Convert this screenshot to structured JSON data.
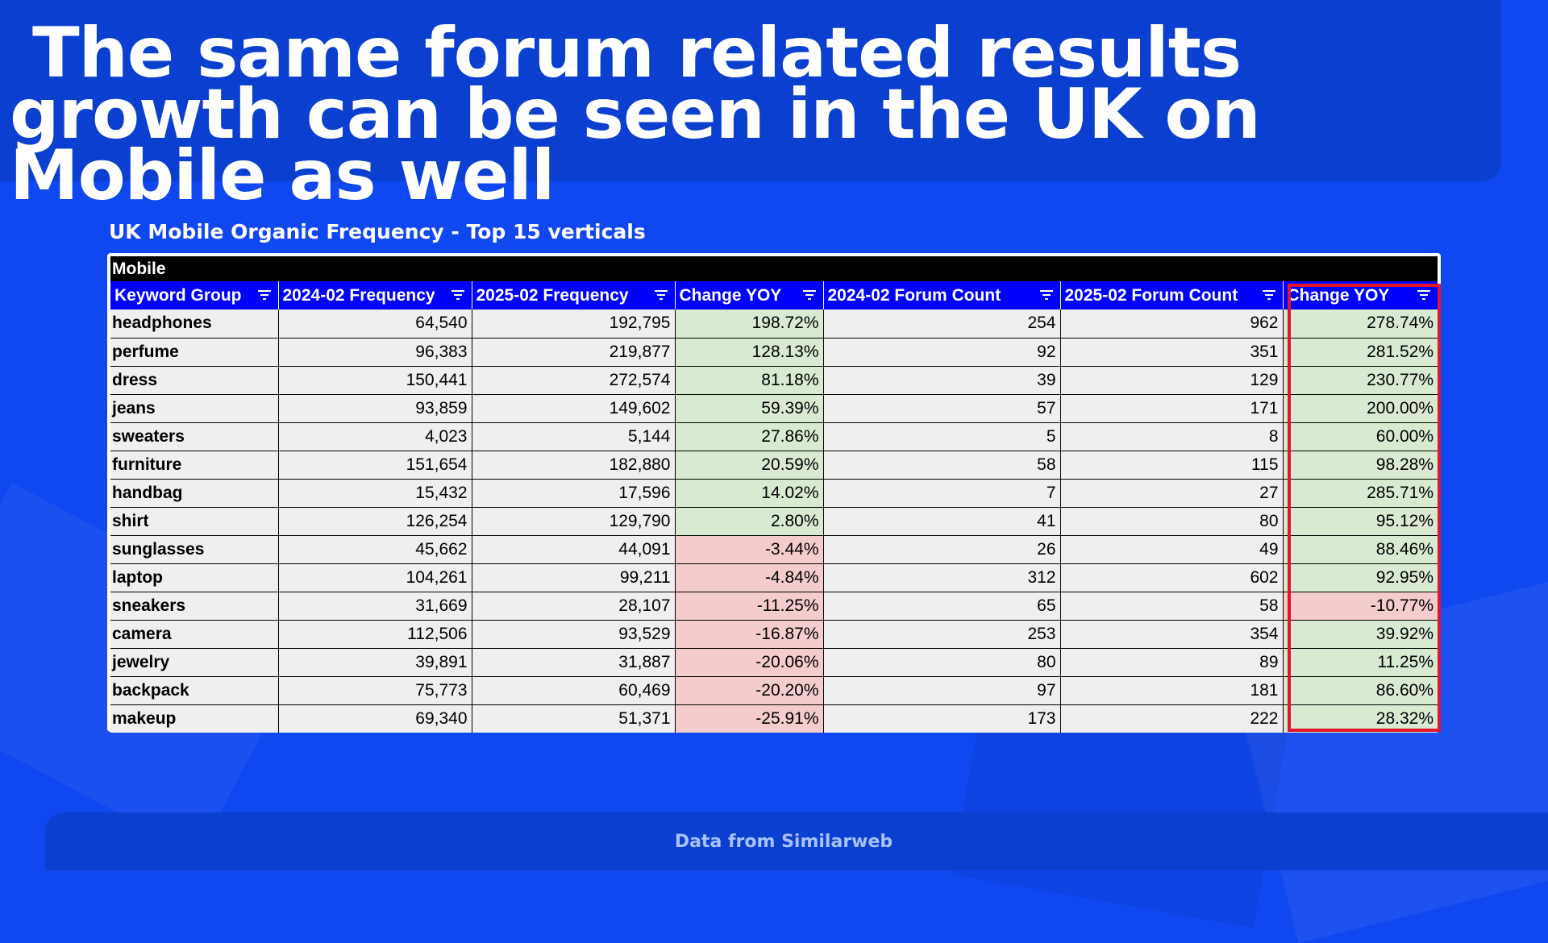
{
  "slide": {
    "title": "The same forum related results growth can be seen in the UK on Mobile as well",
    "table_caption": "UK Mobile Organic Frequency - Top 15 verticals",
    "footer": "Data from Similarweb"
  },
  "table": {
    "section_label": "Mobile",
    "headers": [
      "Keyword Group",
      "2024-02 Frequency",
      "2025-02 Frequency",
      "Change YOY",
      "2024-02  Forum Count",
      "2025-02 Forum Count",
      "Change YOY"
    ],
    "rows": [
      {
        "keyword": "headphones",
        "freq_2024": "64,540",
        "freq_2025": "192,795",
        "freq_change": "198.72%",
        "forum_2024": "254",
        "forum_2025": "962",
        "forum_change": "278.74%",
        "freq_change_sign": "pos",
        "forum_change_sign": "pos"
      },
      {
        "keyword": "perfume",
        "freq_2024": "96,383",
        "freq_2025": "219,877",
        "freq_change": "128.13%",
        "forum_2024": "92",
        "forum_2025": "351",
        "forum_change": "281.52%",
        "freq_change_sign": "pos",
        "forum_change_sign": "pos"
      },
      {
        "keyword": "dress",
        "freq_2024": "150,441",
        "freq_2025": "272,574",
        "freq_change": "81.18%",
        "forum_2024": "39",
        "forum_2025": "129",
        "forum_change": "230.77%",
        "freq_change_sign": "pos",
        "forum_change_sign": "pos"
      },
      {
        "keyword": "jeans",
        "freq_2024": "93,859",
        "freq_2025": "149,602",
        "freq_change": "59.39%",
        "forum_2024": "57",
        "forum_2025": "171",
        "forum_change": "200.00%",
        "freq_change_sign": "pos",
        "forum_change_sign": "pos"
      },
      {
        "keyword": "sweaters",
        "freq_2024": "4,023",
        "freq_2025": "5,144",
        "freq_change": "27.86%",
        "forum_2024": "5",
        "forum_2025": "8",
        "forum_change": "60.00%",
        "freq_change_sign": "pos",
        "forum_change_sign": "pos"
      },
      {
        "keyword": "furniture",
        "freq_2024": "151,654",
        "freq_2025": "182,880",
        "freq_change": "20.59%",
        "forum_2024": "58",
        "forum_2025": "115",
        "forum_change": "98.28%",
        "freq_change_sign": "pos",
        "forum_change_sign": "pos"
      },
      {
        "keyword": "handbag",
        "freq_2024": "15,432",
        "freq_2025": "17,596",
        "freq_change": "14.02%",
        "forum_2024": "7",
        "forum_2025": "27",
        "forum_change": "285.71%",
        "freq_change_sign": "pos",
        "forum_change_sign": "pos"
      },
      {
        "keyword": "shirt",
        "freq_2024": "126,254",
        "freq_2025": "129,790",
        "freq_change": "2.80%",
        "forum_2024": "41",
        "forum_2025": "80",
        "forum_change": "95.12%",
        "freq_change_sign": "pos",
        "forum_change_sign": "pos"
      },
      {
        "keyword": "sunglasses",
        "freq_2024": "45,662",
        "freq_2025": "44,091",
        "freq_change": "-3.44%",
        "forum_2024": "26",
        "forum_2025": "49",
        "forum_change": "88.46%",
        "freq_change_sign": "neg",
        "forum_change_sign": "pos"
      },
      {
        "keyword": "laptop",
        "freq_2024": "104,261",
        "freq_2025": "99,211",
        "freq_change": "-4.84%",
        "forum_2024": "312",
        "forum_2025": "602",
        "forum_change": "92.95%",
        "freq_change_sign": "neg",
        "forum_change_sign": "pos"
      },
      {
        "keyword": "sneakers",
        "freq_2024": "31,669",
        "freq_2025": "28,107",
        "freq_change": "-11.25%",
        "forum_2024": "65",
        "forum_2025": "58",
        "forum_change": "-10.77%",
        "freq_change_sign": "neg",
        "forum_change_sign": "neg"
      },
      {
        "keyword": "camera",
        "freq_2024": "112,506",
        "freq_2025": "93,529",
        "freq_change": "-16.87%",
        "forum_2024": "253",
        "forum_2025": "354",
        "forum_change": "39.92%",
        "freq_change_sign": "neg",
        "forum_change_sign": "pos"
      },
      {
        "keyword": "jewelry",
        "freq_2024": "39,891",
        "freq_2025": "31,887",
        "freq_change": "-20.06%",
        "forum_2024": "80",
        "forum_2025": "89",
        "forum_change": "11.25%",
        "freq_change_sign": "neg",
        "forum_change_sign": "pos"
      },
      {
        "keyword": "backpack",
        "freq_2024": "75,773",
        "freq_2025": "60,469",
        "freq_change": "-20.20%",
        "forum_2024": "97",
        "forum_2025": "181",
        "forum_change": "86.60%",
        "freq_change_sign": "neg",
        "forum_change_sign": "pos"
      },
      {
        "keyword": "makeup",
        "freq_2024": "69,340",
        "freq_2025": "51,371",
        "freq_change": "-25.91%",
        "forum_2024": "173",
        "forum_2025": "222",
        "forum_change": "28.32%",
        "freq_change_sign": "neg",
        "forum_change_sign": "pos"
      }
    ]
  },
  "icons": {
    "header_filter": "filter-icon"
  },
  "colors": {
    "background": "#0f47f0",
    "banner": "#0a3fd0",
    "header_blue": "#0000ff",
    "positive_fill": "#d9ead3",
    "negative_fill": "#f4cccc",
    "highlight_red": "#e4142b"
  }
}
